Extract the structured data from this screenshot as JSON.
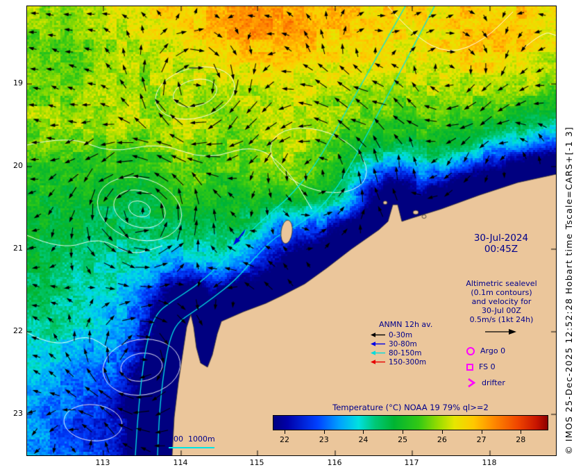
{
  "axes": {
    "lat_labels": [
      "19",
      "20",
      "21",
      "22",
      "23"
    ],
    "lon_labels": [
      "113",
      "114",
      "115",
      "116",
      "117",
      "118"
    ]
  },
  "timestamp": {
    "date": "30-Jul-2024",
    "time": "00:45Z"
  },
  "altimetric_note": {
    "line1": "Altimetric sealevel",
    "line2": "(0.1m contours)",
    "line3": "and velocity for",
    "line4": "30-Jul 00Z",
    "line5": "0.5m/s (1kt 24h)"
  },
  "anmn_legend": {
    "title": "ANMN 12h av.",
    "entries": [
      {
        "label": "0-30m",
        "color": "#000000"
      },
      {
        "label": "30-80m",
        "color": "#0000e6"
      },
      {
        "label": "80-150m",
        "color": "#00dcdc"
      },
      {
        "label": "150-300m",
        "color": "#e60000"
      }
    ]
  },
  "markers": [
    {
      "shape": "circle",
      "label": "Argo 0",
      "color": "#ff00ff"
    },
    {
      "shape": "square",
      "label": "FS 0",
      "color": "#ff00ff"
    },
    {
      "shape": "chevron",
      "label": "drifter",
      "color": "#ff00ff"
    }
  ],
  "bathymetry": {
    "label": "200  1000m",
    "color": "#00e5e5"
  },
  "colorbar": {
    "title": "Temperature (°C) NOAA 19 79% ql>=2",
    "tick_values": [
      22,
      23,
      24,
      25,
      26,
      27,
      28
    ],
    "min": 21.7,
    "max": 28.7,
    "stops": [
      {
        "t": 0.0,
        "c": "#000080"
      },
      {
        "t": 0.05,
        "c": "#0000a8"
      },
      {
        "t": 0.16,
        "c": "#0040ff"
      },
      {
        "t": 0.24,
        "c": "#00a0ff"
      },
      {
        "t": 0.31,
        "c": "#00e0e0"
      },
      {
        "t": 0.37,
        "c": "#00c878"
      },
      {
        "t": 0.44,
        "c": "#00b432"
      },
      {
        "t": 0.53,
        "c": "#32c814"
      },
      {
        "t": 0.6,
        "c": "#96dc00"
      },
      {
        "t": 0.66,
        "c": "#e6e600"
      },
      {
        "t": 0.73,
        "c": "#ffc800"
      },
      {
        "t": 0.8,
        "c": "#ff8c00"
      },
      {
        "t": 0.89,
        "c": "#f04600"
      },
      {
        "t": 0.96,
        "c": "#c81400"
      },
      {
        "t": 1.0,
        "c": "#8c0000"
      }
    ]
  },
  "credit": "© IMOS 25-Dec-2025 12:52:28 Hobart time Tscale=CARS+[-1 3]",
  "map_colors": {
    "land": "#ebc69b",
    "contour_white": "#ffffff",
    "annotation": "#00008b",
    "arrow_black": "#000000"
  }
}
